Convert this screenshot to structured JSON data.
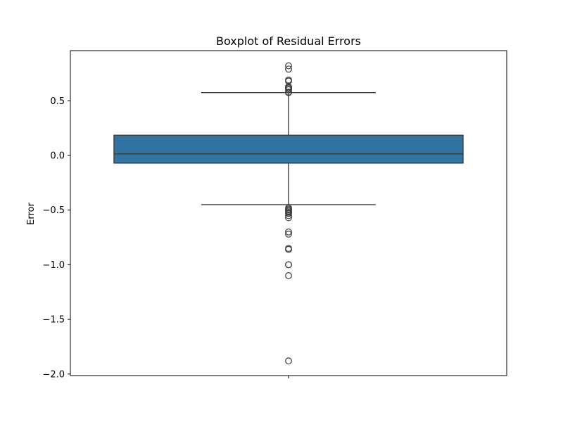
{
  "chart_data": {
    "type": "box",
    "title": "Boxplot of Residual Errors",
    "xlabel": "",
    "ylabel": "Error",
    "ylim": [
      -2.0,
      0.9
    ],
    "yticks": [
      0.5,
      0.0,
      -0.5,
      -1.0,
      -1.5,
      -2.0
    ],
    "ytick_labels": [
      "0.5",
      "0.0",
      "−0.5",
      "−1.0",
      "−1.5",
      "−2.0"
    ],
    "box": {
      "q1": -0.07,
      "median": 0.015,
      "q3": 0.185,
      "whisker_low": -0.45,
      "whisker_high": 0.575,
      "color": "#3274a1",
      "edge_color": "#3d3d3d"
    },
    "outliers": [
      0.82,
      0.79,
      0.69,
      0.68,
      0.63,
      0.62,
      0.61,
      0.6,
      0.58,
      0.575,
      -0.48,
      -0.49,
      -0.5,
      -0.51,
      -0.52,
      -0.53,
      -0.55,
      -0.57,
      -0.7,
      -0.72,
      -0.85,
      -0.86,
      -1.0,
      -1.0,
      -1.1,
      -1.88
    ],
    "grid": false,
    "legend": "none"
  }
}
